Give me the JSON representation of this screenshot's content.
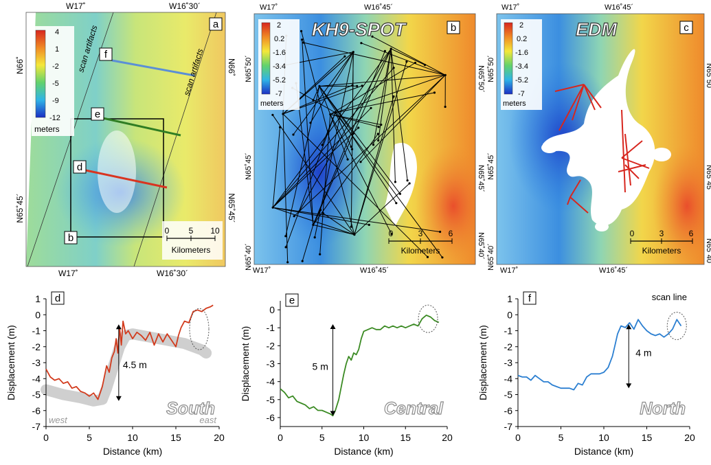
{
  "maps": [
    {
      "id": "a",
      "top_labels": [
        "W17˚",
        "W16˚30´"
      ],
      "bottom_labels": [
        "W17˚",
        "W16˚30´"
      ],
      "left_labels": [
        "N66˚",
        "N65˚45´"
      ],
      "right_labels": [
        "N66˚",
        "N65˚45´"
      ],
      "colorbar": {
        "ticks": [
          "4",
          "1",
          "-2",
          "-5",
          "-9",
          "-12"
        ],
        "unit": "meters"
      },
      "annotations": [
        "scan artifacts",
        "scan artifacts"
      ],
      "profile_tags": [
        "f",
        "e",
        "d",
        "b"
      ],
      "scale": {
        "ticks": [
          "0",
          "5",
          "10"
        ],
        "unit": "Kilometers"
      }
    },
    {
      "id": "b",
      "title": "KH9-SPOT",
      "top_labels": [
        "W17˚",
        "W16˚45´"
      ],
      "bottom_labels": [
        "W17˚",
        "W16˚45´"
      ],
      "left_labels": [
        "N65˚50´",
        "N65˚45´",
        "N65˚40´"
      ],
      "right_labels": [
        "N65˚50´",
        "N65˚45´",
        "N65˚40´"
      ],
      "colorbar": {
        "ticks": [
          "2",
          "0.2",
          "-1.6",
          "-3.4",
          "-5.2",
          "-7"
        ],
        "unit": "meters"
      },
      "scale": {
        "ticks": [
          "0",
          "3",
          "6"
        ],
        "unit": "Kilometers"
      }
    },
    {
      "id": "c",
      "title": "EDM",
      "top_labels": [
        "W17˚",
        "W16˚45´"
      ],
      "bottom_labels": [
        "W17˚",
        "W16˚45´"
      ],
      "left_labels": [
        "N65˚50´",
        "N65˚45´",
        "N65˚40´"
      ],
      "right_labels": [
        "N65˚50",
        "N65˚45",
        "N65˚40"
      ],
      "colorbar": {
        "ticks": [
          "2",
          "0.2",
          "-1.6",
          "-3.4",
          "-5.2",
          "-7"
        ],
        "unit": "meters"
      },
      "scale": {
        "ticks": [
          "0",
          "3",
          "6"
        ],
        "unit": "Kilometers"
      }
    }
  ],
  "chart_data": [
    {
      "type": "line",
      "panel": "d",
      "name_text": "South",
      "xlabel": "Distance (km)",
      "ylabel": "Displacement (m)",
      "xlim": [
        0,
        20
      ],
      "ylim": [
        -7,
        1
      ],
      "xticks": [
        0,
        5,
        10,
        15,
        20
      ],
      "yticks": [
        1,
        0,
        -1,
        -2,
        -3,
        -4,
        -5,
        -6,
        -7
      ],
      "color": "#d23a1c",
      "x": [
        0,
        0.5,
        1,
        1.5,
        2,
        2.5,
        3,
        3.5,
        4,
        4.5,
        5,
        5.5,
        6,
        6.5,
        7,
        7.3,
        7.6,
        7.9,
        8.1,
        8.3,
        8.5,
        8.7,
        8.9,
        9.2,
        9.5,
        10,
        10.5,
        11,
        11.5,
        12,
        12.5,
        13,
        13.5,
        14,
        14.5,
        15,
        15.3,
        15.6,
        16,
        16.5,
        17,
        17.5,
        18,
        18.5,
        19,
        19.3
      ],
      "y": [
        -3.4,
        -3.9,
        -4.1,
        -4.0,
        -4.3,
        -4.2,
        -4.6,
        -4.5,
        -4.8,
        -4.9,
        -5.1,
        -4.9,
        -5.3,
        -4.5,
        -3.2,
        -3.6,
        -2.7,
        -2.3,
        -1.5,
        -2.4,
        -0.8,
        -1.9,
        -0.4,
        -1.2,
        -1.0,
        -1.5,
        -1.1,
        -1.3,
        -1.6,
        -1.1,
        -1.9,
        -1.2,
        -1.7,
        -1.2,
        -1.6,
        -2.0,
        -1.3,
        -0.8,
        -0.4,
        -0.5,
        0.2,
        0.3,
        0.2,
        0.4,
        0.5,
        0.6
      ],
      "shade_x": [
        0,
        2,
        4,
        5.5,
        6.5,
        7,
        7.8,
        8.5,
        9.2,
        10,
        12,
        14,
        16,
        18,
        18.5
      ],
      "shade_y": [
        -4.7,
        -5.0,
        -5.2,
        -5.4,
        -5.3,
        -4.6,
        -3.2,
        -2.0,
        -1.3,
        -1.2,
        -1.4,
        -1.6,
        -1.8,
        -2.2,
        -2.4
      ],
      "arrow": {
        "x": 8.4,
        "y_top": -0.6,
        "y_bottom": -5.4,
        "label": "4.5 m"
      },
      "side_labels": [
        "west",
        "east"
      ]
    },
    {
      "type": "line",
      "panel": "e",
      "name_text": "Central",
      "xlabel": "Distance (km)",
      "ylabel": "Displacement (m)",
      "xlim": [
        0,
        20
      ],
      "ylim": [
        -6.5,
        0.5
      ],
      "xticks": [
        0,
        5,
        10,
        15,
        20
      ],
      "yticks": [
        0,
        -1,
        -2,
        -3,
        -4,
        -5,
        -6
      ],
      "color": "#3a8a22",
      "x": [
        0,
        0.5,
        1,
        1.5,
        2,
        2.5,
        3,
        3.5,
        4,
        4.5,
        5,
        5.5,
        6,
        6.3,
        6.6,
        7,
        7.3,
        7.6,
        7.9,
        8.2,
        8.5,
        8.8,
        9.1,
        9.4,
        9.7,
        10,
        10.5,
        11,
        11.5,
        12,
        12.5,
        13,
        13.5,
        14,
        14.5,
        15,
        15.5,
        16,
        16.5,
        17,
        17.5,
        18,
        18.5,
        19
      ],
      "y": [
        -4.4,
        -4.6,
        -4.9,
        -4.8,
        -5.1,
        -5.2,
        -5.3,
        -5.5,
        -5.4,
        -5.6,
        -5.6,
        -5.7,
        -5.8,
        -5.9,
        -5.6,
        -5.0,
        -4.3,
        -3.6,
        -3.0,
        -2.6,
        -2.8,
        -2.4,
        -2.5,
        -2.2,
        -1.6,
        -1.2,
        -1.1,
        -1.0,
        -1.1,
        -1.1,
        -0.9,
        -1.0,
        -0.9,
        -1.0,
        -0.9,
        -1.0,
        -0.9,
        -0.8,
        -0.9,
        -0.5,
        -0.3,
        -0.4,
        -0.6,
        -0.7
      ],
      "arrow": {
        "x": 6.3,
        "y_top": -0.8,
        "y_bottom": -5.9,
        "label": "5 m"
      }
    },
    {
      "type": "line",
      "panel": "f",
      "name_text": "North",
      "xlabel": "Distance (km)",
      "ylabel": "Displacement (m)",
      "xlim": [
        0,
        20
      ],
      "ylim": [
        -7,
        1
      ],
      "xticks": [
        0,
        5,
        10,
        15,
        20
      ],
      "yticks": [
        1,
        0,
        -1,
        -2,
        -3,
        -4,
        -5,
        -6,
        -7
      ],
      "color": "#2b7fd1",
      "x": [
        0,
        0.5,
        1,
        1.5,
        2,
        2.5,
        3,
        3.5,
        4,
        4.5,
        5,
        5.5,
        6,
        6.5,
        7,
        7.5,
        8,
        8.5,
        9,
        9.5,
        10,
        10.5,
        11,
        11.3,
        11.6,
        12,
        12.5,
        13,
        13.5,
        14,
        14.5,
        15,
        15.5,
        16,
        16.5,
        17,
        17.5,
        18,
        18.5,
        19
      ],
      "y": [
        -3.8,
        -3.9,
        -3.9,
        -4.1,
        -3.8,
        -4.0,
        -4.2,
        -4.2,
        -4.4,
        -4.5,
        -4.6,
        -4.6,
        -4.6,
        -4.7,
        -4.3,
        -4.4,
        -3.9,
        -3.7,
        -3.7,
        -3.7,
        -3.6,
        -3.3,
        -2.6,
        -1.9,
        -1.2,
        -0.7,
        -0.8,
        -0.5,
        -0.9,
        -0.3,
        -0.7,
        -1.0,
        -1.2,
        -1.3,
        -1.2,
        -1.4,
        -1.2,
        -0.9,
        -0.3,
        -0.7
      ],
      "arrow": {
        "x": 12.9,
        "y_top": -0.6,
        "y_bottom": -4.6,
        "label": "4 m"
      },
      "callout": "scan line"
    }
  ]
}
